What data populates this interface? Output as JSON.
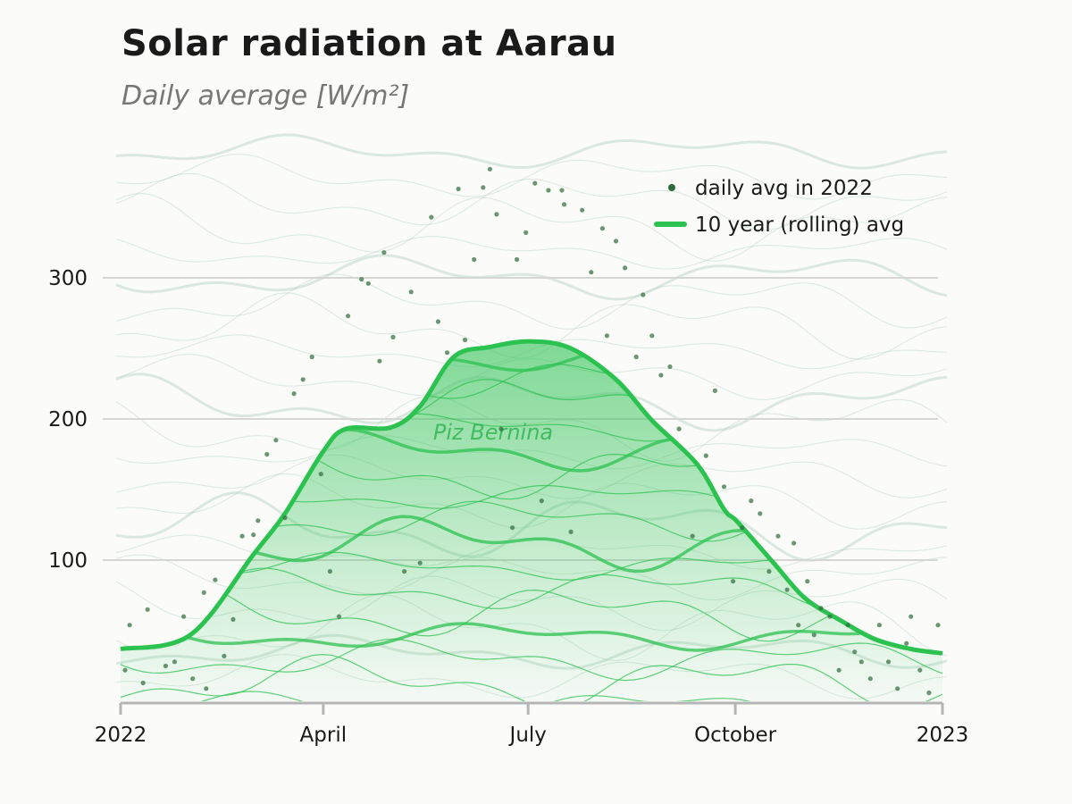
{
  "chart_data": {
    "type": "line",
    "title": "Solar radiation at Aarau",
    "subtitle": "Daily average [W/m²]",
    "xlabel": "",
    "ylabel": "",
    "xlim": [
      0,
      365
    ],
    "ylim": [
      0,
      400
    ],
    "grid": true,
    "x_ticks": [
      {
        "day": 0,
        "label": "2022"
      },
      {
        "day": 90,
        "label": "April"
      },
      {
        "day": 181,
        "label": "July"
      },
      {
        "day": 273,
        "label": "October"
      },
      {
        "day": 365,
        "label": "2023"
      }
    ],
    "y_ticks": [
      {
        "value": 100,
        "label": "100"
      },
      {
        "value": 200,
        "label": "200"
      },
      {
        "value": 300,
        "label": "300"
      }
    ],
    "annotation": "Piz Bernina",
    "legend_position": "top-right",
    "colors": {
      "points": "#2e6b3a",
      "line": "#2bc24f",
      "fill": "#3cc65e"
    },
    "series": [
      {
        "name": "daily avg in 2022",
        "kind": "scatter",
        "points": [
          [
            2,
            22
          ],
          [
            4,
            54
          ],
          [
            10,
            13
          ],
          [
            12,
            65
          ],
          [
            20,
            25
          ],
          [
            24,
            28
          ],
          [
            28,
            60
          ],
          [
            32,
            16
          ],
          [
            37,
            77
          ],
          [
            38,
            9
          ],
          [
            42,
            86
          ],
          [
            46,
            32
          ],
          [
            50,
            58
          ],
          [
            54,
            117
          ],
          [
            59,
            118
          ],
          [
            61,
            128
          ],
          [
            65,
            175
          ],
          [
            69,
            185
          ],
          [
            73,
            130
          ],
          [
            77,
            218
          ],
          [
            81,
            228
          ],
          [
            85,
            244
          ],
          [
            89,
            161
          ],
          [
            93,
            92
          ],
          [
            97,
            60
          ],
          [
            101,
            273
          ],
          [
            107,
            299
          ],
          [
            110,
            296
          ],
          [
            115,
            241
          ],
          [
            117,
            318
          ],
          [
            121,
            258
          ],
          [
            126,
            92
          ],
          [
            129,
            290
          ],
          [
            133,
            98
          ],
          [
            138,
            343
          ],
          [
            141,
            269
          ],
          [
            145,
            247
          ],
          [
            150,
            363
          ],
          [
            153,
            256
          ],
          [
            157,
            313
          ],
          [
            161,
            364
          ],
          [
            164,
            377
          ],
          [
            167,
            345
          ],
          [
            169,
            193
          ],
          [
            174,
            123
          ],
          [
            176,
            313
          ],
          [
            180,
            332
          ],
          [
            184,
            367
          ],
          [
            187,
            142
          ],
          [
            190,
            362
          ],
          [
            196,
            362
          ],
          [
            197,
            352
          ],
          [
            200,
            120
          ],
          [
            205,
            348
          ],
          [
            209,
            304
          ],
          [
            214,
            335
          ],
          [
            216,
            259
          ],
          [
            220,
            326
          ],
          [
            224,
            307
          ],
          [
            229,
            244
          ],
          [
            232,
            288
          ],
          [
            236,
            259
          ],
          [
            240,
            231
          ],
          [
            244,
            237
          ],
          [
            248,
            193
          ],
          [
            254,
            117
          ],
          [
            260,
            174
          ],
          [
            264,
            220
          ],
          [
            268,
            152
          ],
          [
            272,
            85
          ],
          [
            276,
            123
          ],
          [
            280,
            142
          ],
          [
            284,
            133
          ],
          [
            288,
            92
          ],
          [
            292,
            117
          ],
          [
            296,
            79
          ],
          [
            299,
            112
          ],
          [
            301,
            54
          ],
          [
            305,
            85
          ],
          [
            308,
            47
          ],
          [
            311,
            66
          ],
          [
            315,
            60
          ],
          [
            319,
            22
          ],
          [
            323,
            54
          ],
          [
            326,
            35
          ],
          [
            329,
            28
          ],
          [
            333,
            16
          ],
          [
            337,
            54
          ],
          [
            341,
            28
          ],
          [
            345,
            9
          ],
          [
            349,
            41
          ],
          [
            351,
            60
          ],
          [
            355,
            22
          ],
          [
            359,
            6
          ],
          [
            363,
            54
          ]
        ]
      },
      {
        "name": "10 year (rolling) avg",
        "kind": "line",
        "points": [
          [
            0,
            37
          ],
          [
            31,
            47
          ],
          [
            59,
            104
          ],
          [
            73,
            133
          ],
          [
            90,
            177
          ],
          [
            100,
            193
          ],
          [
            120,
            194
          ],
          [
            133,
            209
          ],
          [
            148,
            244
          ],
          [
            164,
            251
          ],
          [
            182,
            255
          ],
          [
            200,
            250
          ],
          [
            220,
            228
          ],
          [
            236,
            199
          ],
          [
            256,
            168
          ],
          [
            268,
            136
          ],
          [
            274,
            127
          ],
          [
            290,
            98
          ],
          [
            304,
            73
          ],
          [
            320,
            57
          ],
          [
            335,
            44
          ],
          [
            351,
            37
          ],
          [
            365,
            34
          ]
        ]
      }
    ]
  }
}
